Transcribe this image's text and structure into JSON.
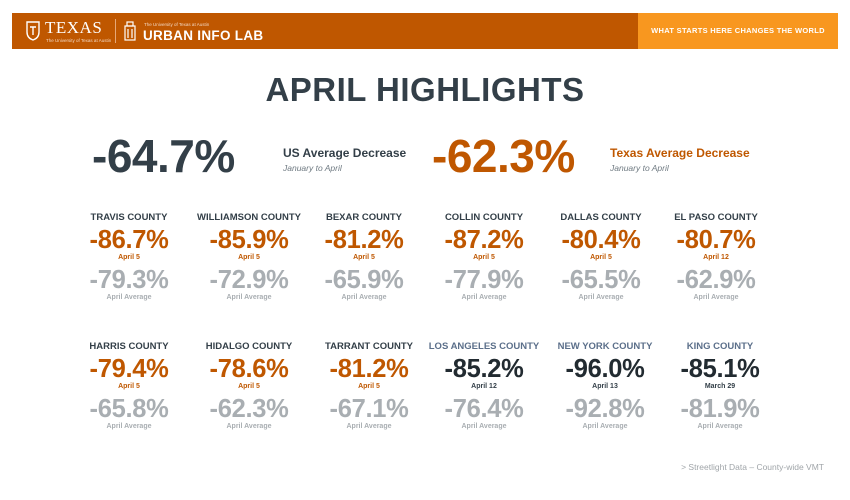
{
  "header": {
    "texas_word": "TEXAS",
    "texas_sub": "The University of Texas at Austin",
    "lab_sub": "The University of Texas at Austin",
    "lab_title": "URBAN INFO LAB",
    "tagline": "WHAT STARTS HERE CHANGES THE WORLD",
    "colors": {
      "burnt_orange": "#bf5700",
      "orange": "#f8971f"
    }
  },
  "title": "APRIL HIGHLIGHTS",
  "headline": {
    "us": {
      "value": "-64.7%",
      "label": "US Average Decrease",
      "sub": "January to April"
    },
    "tx": {
      "value": "-62.3%",
      "label": "Texas Average Decrease",
      "sub": "January to April"
    }
  },
  "counties": [
    {
      "name": "TRAVIS COUNTY",
      "value": "-86.7%",
      "date": "April 5",
      "avg": "-79.3%",
      "avg_label": "April Average"
    },
    {
      "name": "WILLIAMSON COUNTY",
      "value": "-85.9%",
      "date": "April 5",
      "avg": "-72.9%",
      "avg_label": "April Average"
    },
    {
      "name": "BEXAR COUNTY",
      "value": "-81.2%",
      "date": "April 5",
      "avg": "-65.9%",
      "avg_label": "April Average"
    },
    {
      "name": "COLLIN COUNTY",
      "value": "-87.2%",
      "date": "April 5",
      "avg": "-77.9%",
      "avg_label": "April Average"
    },
    {
      "name": "DALLAS COUNTY",
      "value": "-80.4%",
      "date": "April 5",
      "avg": "-65.5%",
      "avg_label": "April Average"
    },
    {
      "name": "EL PASO COUNTY",
      "value": "-80.7%",
      "date": "April 12",
      "avg": "-62.9%",
      "avg_label": "April Average"
    },
    {
      "name": "HARRIS COUNTY",
      "value": "-79.4%",
      "date": "April 5",
      "avg": "-65.8%",
      "avg_label": "April Average"
    },
    {
      "name": "HIDALGO COUNTY",
      "value": "-78.6%",
      "date": "April 5",
      "avg": "-62.3%",
      "avg_label": "April Average"
    },
    {
      "name": "TARRANT COUNTY",
      "value": "-81.2%",
      "date": "April 5",
      "avg": "-67.1%",
      "avg_label": "April Average"
    },
    {
      "name": "LOS ANGELES COUNTY",
      "value": "-85.2%",
      "date": "April 12",
      "avg": "-76.4%",
      "avg_label": "April Average"
    },
    {
      "name": "NEW YORK COUNTY",
      "value": "-96.0%",
      "date": "April 13",
      "avg": "-92.8%",
      "avg_label": "April Average"
    },
    {
      "name": "KING COUNTY",
      "value": "-85.1%",
      "date": "March 29",
      "avg": "-81.9%",
      "avg_label": "April Average"
    }
  ],
  "source": "> Streetlight Data – County-wide VMT"
}
